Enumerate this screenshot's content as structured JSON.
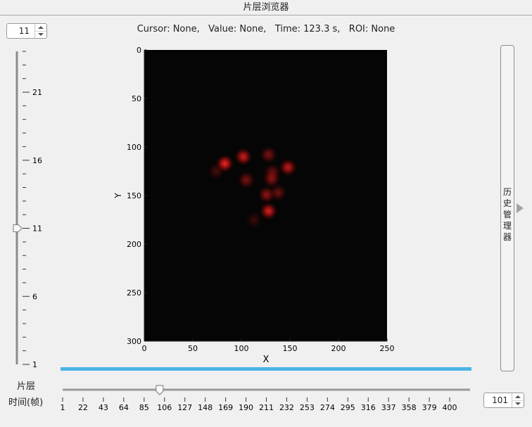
{
  "window": {
    "title": "片层浏览器"
  },
  "slice_spinner": {
    "value": "11"
  },
  "frame_spinner": {
    "value": "101"
  },
  "status_bar": {
    "text": "Cursor: None,   Value: None,   Time: 123.3 s,   ROI: None"
  },
  "slice_slider": {
    "label": "片层",
    "min": 1,
    "max": 24,
    "value": 11,
    "tick_labels": [
      "21",
      "16",
      "11",
      "6",
      "1"
    ],
    "tick_label_values": [
      21,
      16,
      11,
      6,
      1
    ]
  },
  "frame_slider": {
    "label": "时间(帧)",
    "min": 1,
    "max": 421,
    "value": 101,
    "tick_labels": [
      "1",
      "22",
      "43",
      "64",
      "85",
      "106",
      "127",
      "148",
      "169",
      "190",
      "211",
      "232",
      "253",
      "274",
      "295",
      "316",
      "337",
      "358",
      "379",
      "400"
    ]
  },
  "history_panel": {
    "label": "历史管理器"
  },
  "image_axes": {
    "xlabel": "X",
    "ylabel": "Y",
    "xlim": [
      0,
      250
    ],
    "ylim": [
      300,
      0
    ],
    "x_ticks": [
      "0",
      "50",
      "100",
      "150",
      "200",
      "250"
    ],
    "y_ticks": [
      "0",
      "50",
      "100",
      "150",
      "200",
      "250",
      "300"
    ],
    "x_tick_values": [
      0,
      50,
      100,
      150,
      200,
      250
    ],
    "y_tick_values": [
      0,
      50,
      100,
      150,
      200,
      250,
      300
    ],
    "background_color": "#050505",
    "signal_color": "#e01010",
    "cells": [
      {
        "x": 83,
        "y": 117,
        "intensity": 0.95
      },
      {
        "x": 102,
        "y": 110,
        "intensity": 0.8
      },
      {
        "x": 128,
        "y": 108,
        "intensity": 0.45
      },
      {
        "x": 148,
        "y": 121,
        "intensity": 0.75
      },
      {
        "x": 132,
        "y": 126,
        "intensity": 0.4
      },
      {
        "x": 105,
        "y": 134,
        "intensity": 0.45
      },
      {
        "x": 131,
        "y": 133,
        "intensity": 0.5
      },
      {
        "x": 126,
        "y": 149,
        "intensity": 0.55
      },
      {
        "x": 138,
        "y": 147,
        "intensity": 0.4
      },
      {
        "x": 128,
        "y": 166,
        "intensity": 0.85
      },
      {
        "x": 74,
        "y": 125,
        "intensity": 0.25
      },
      {
        "x": 113,
        "y": 175,
        "intensity": 0.2
      }
    ]
  },
  "colors": {
    "accent_bar": "#4db3e6",
    "panel_bg": "#f0f0f0"
  }
}
